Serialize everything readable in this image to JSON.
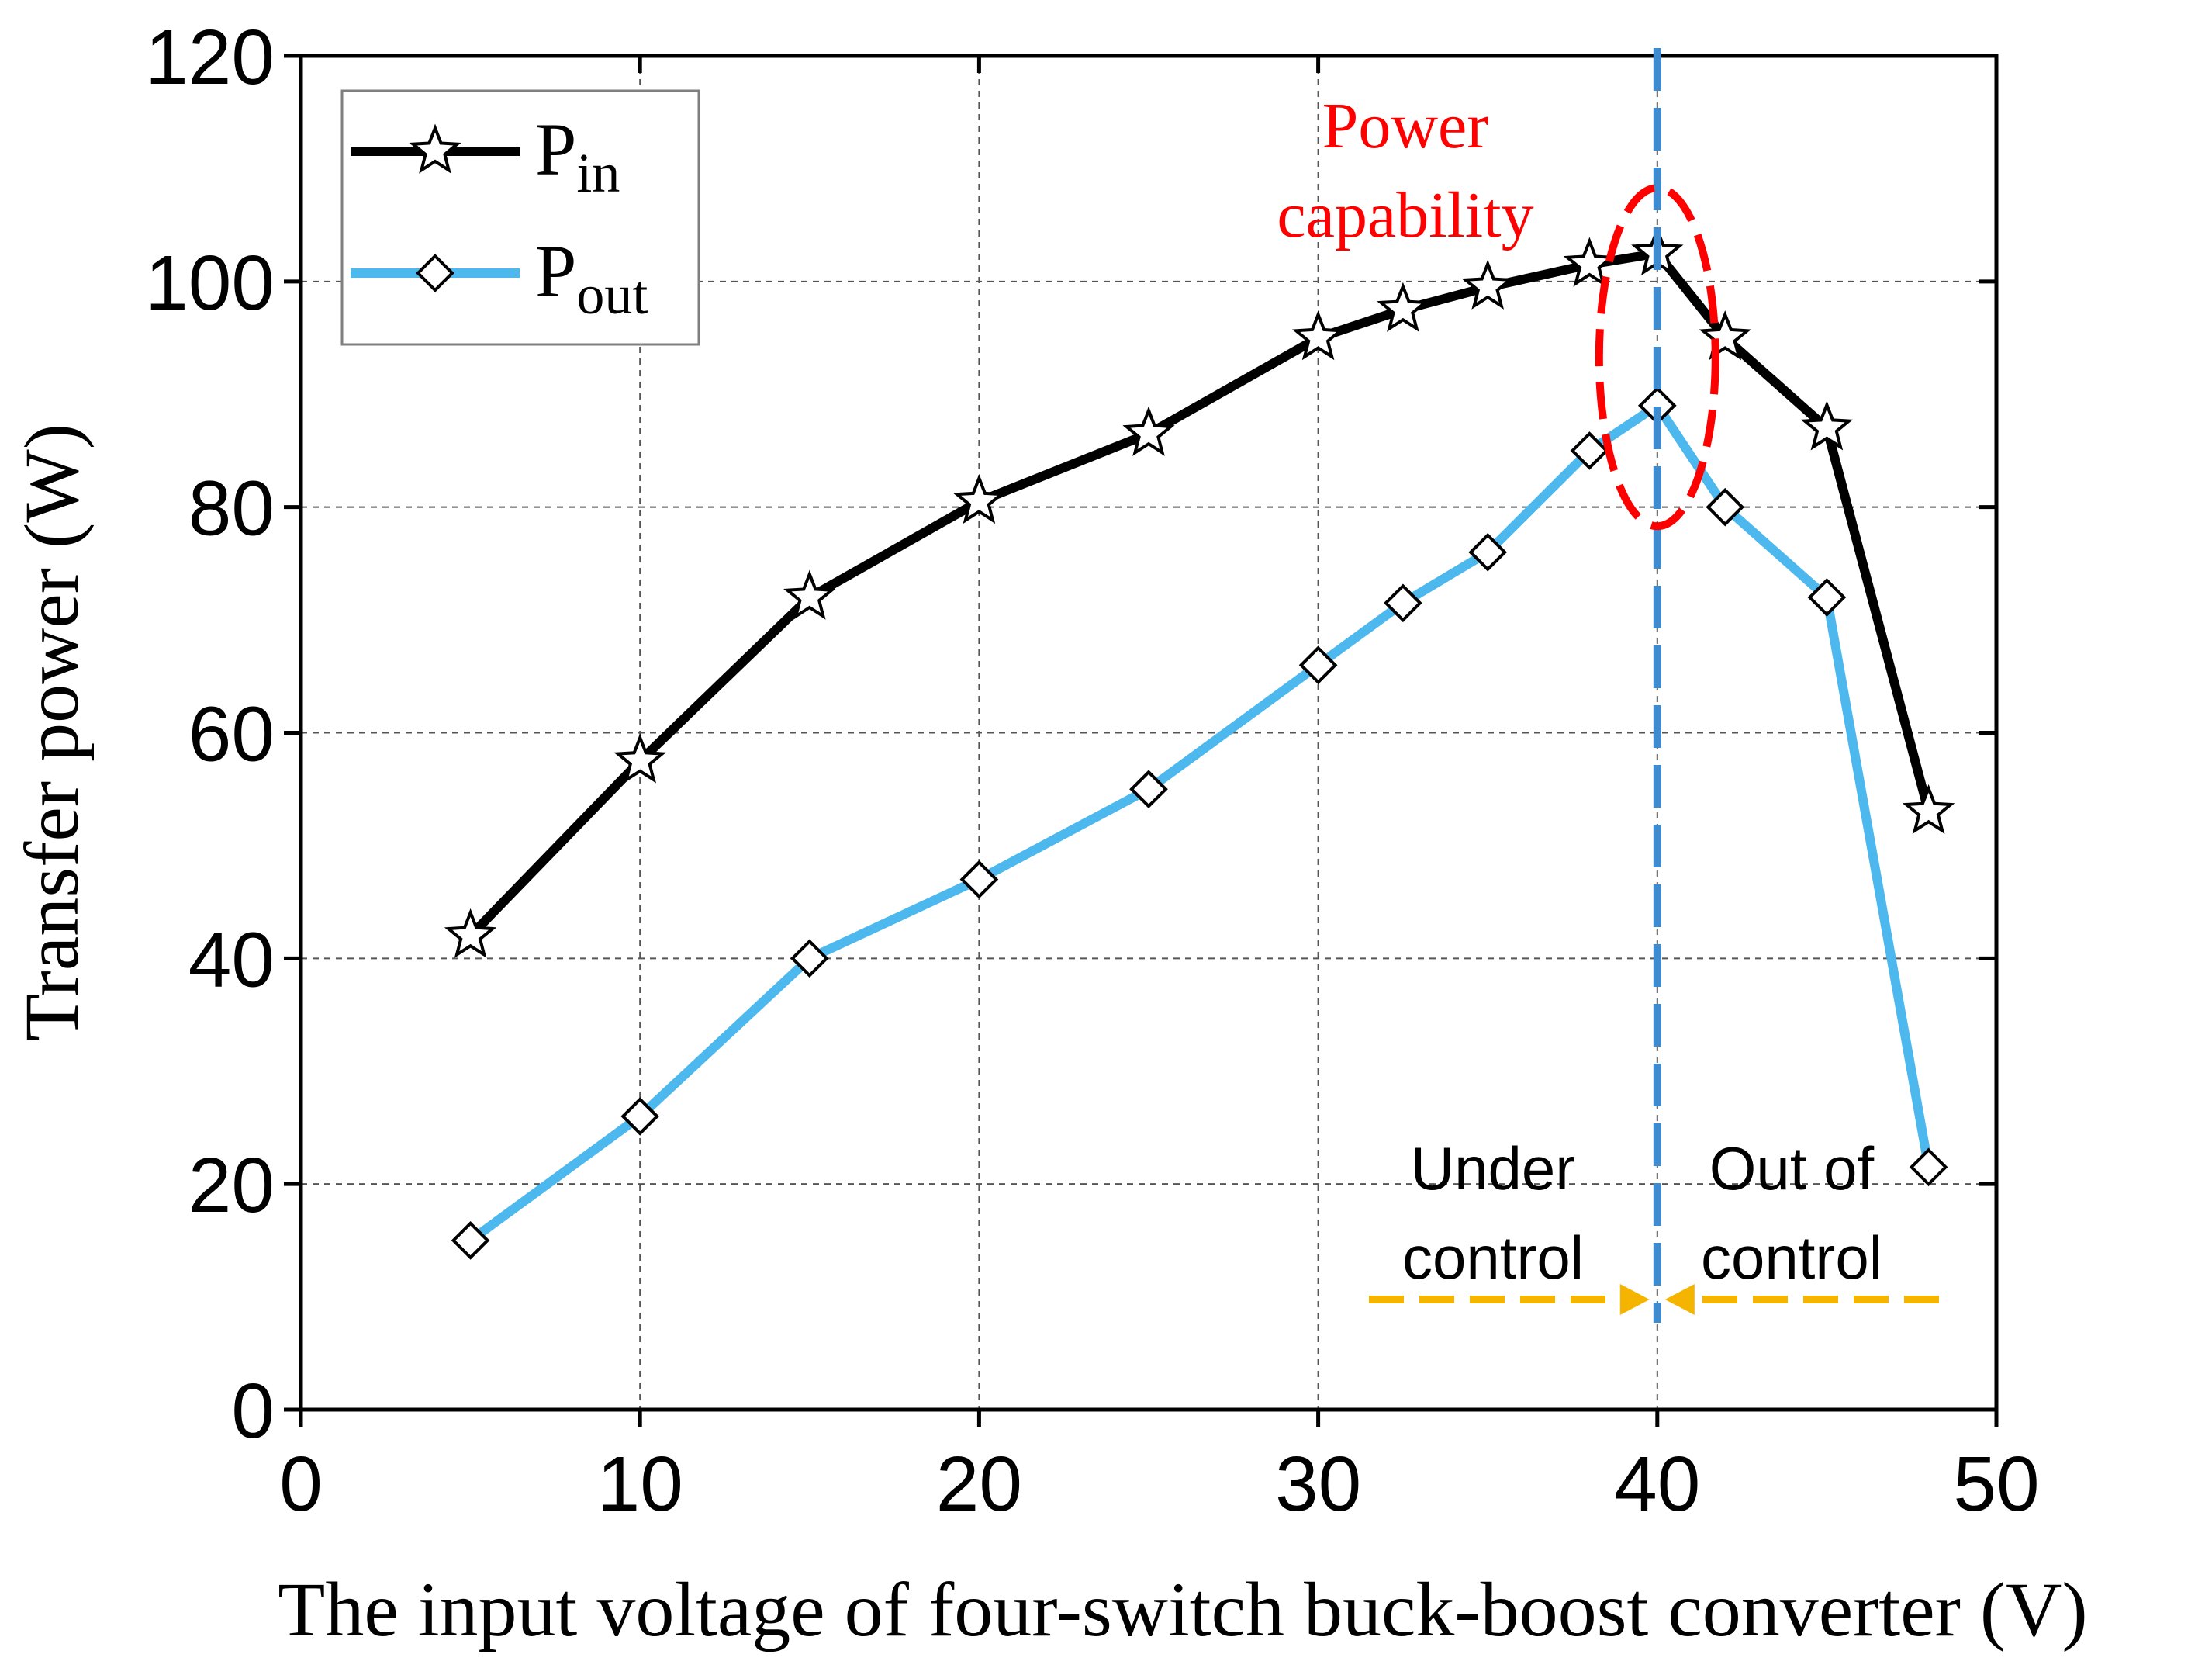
{
  "chart_data": {
    "type": "line",
    "xlabel": "The input voltage of four-switch buck-boost converter (V)",
    "ylabel": "Transfer power (W)",
    "xlim": [
      0,
      50
    ],
    "ylim": [
      0,
      120
    ],
    "x_ticks": [
      "0",
      "10",
      "20",
      "30",
      "40",
      "50"
    ],
    "y_ticks": [
      "0",
      "20",
      "40",
      "60",
      "80",
      "100",
      "120"
    ],
    "grid": true,
    "legend_position": "top-left",
    "series": [
      {
        "name": "P",
        "subscript": "in",
        "marker": "star",
        "color": "#000000",
        "x": [
          5,
          10,
          15,
          20,
          25,
          30,
          32.5,
          35,
          38,
          40,
          42,
          45,
          48
        ],
        "y": [
          42,
          57.5,
          72,
          80.5,
          86.5,
          95,
          97.5,
          99.5,
          101.5,
          102.5,
          95,
          87,
          53
        ]
      },
      {
        "name": "P",
        "subscript": "out",
        "marker": "diamond",
        "color": "#4db8ee",
        "x": [
          5,
          10,
          15,
          20,
          25,
          30,
          32.5,
          35,
          38,
          40,
          42,
          45,
          48
        ],
        "y": [
          15,
          26,
          40,
          47,
          55,
          66,
          71.5,
          76,
          85,
          89,
          80,
          72,
          21.5
        ]
      }
    ],
    "annotations": {
      "power_capability_line1": "Power",
      "power_capability_line2": "capability",
      "under_control_line1": "Under",
      "under_control_line2": "control",
      "out_of_control_line1": "Out of",
      "out_of_control_line2": "control",
      "divider_x": 40
    },
    "colors": {
      "pin": "#000000",
      "pout": "#4db8ee",
      "divider": "#3e8ccf",
      "ellipse": "#ff0000",
      "arrow": "#f5b400"
    }
  }
}
